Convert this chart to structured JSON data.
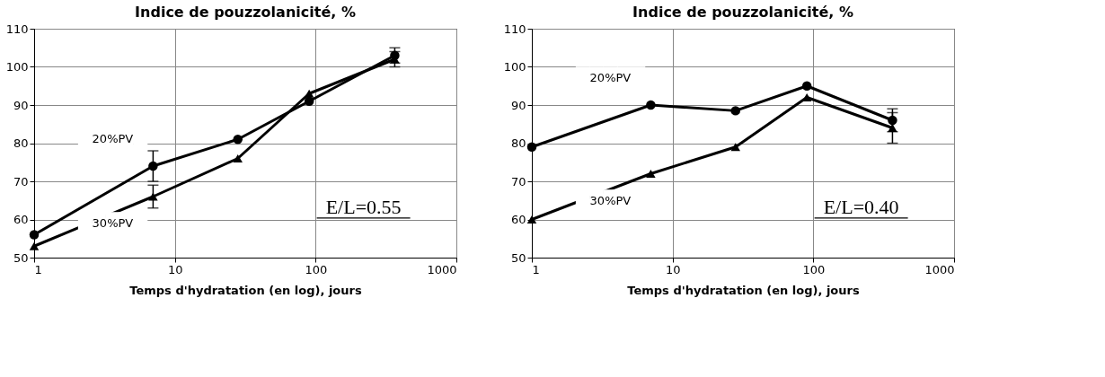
{
  "chart_data": [
    {
      "type": "line",
      "title": "Indice de pouzzolanicité, %",
      "xlabel": "Temps d'hydratation (en log), jours",
      "log": "x",
      "grid": true,
      "xlim": [
        1,
        1000
      ],
      "xticks": [
        1,
        10,
        100,
        1000
      ],
      "ylim": [
        50,
        110
      ],
      "yticks": [
        50,
        60,
        70,
        80,
        90,
        100,
        110
      ],
      "annotations": [
        "E/L=0.55"
      ],
      "line_style": "solid",
      "series": [
        {
          "name": "20%PV",
          "color": "#000000",
          "marker": "circle",
          "x": [
            1,
            7,
            28,
            90,
            365
          ],
          "values": [
            56,
            74,
            81,
            91,
            103
          ],
          "errors": [
            null,
            4,
            null,
            null,
            2
          ]
        },
        {
          "name": "30%PV",
          "color": "#000000",
          "marker": "triangle",
          "x": [
            1,
            7,
            28,
            90,
            365
          ],
          "values": [
            53,
            66,
            76,
            93,
            102
          ],
          "errors": [
            null,
            3,
            null,
            null,
            2
          ]
        }
      ]
    },
    {
      "type": "line",
      "title": "Indice de pouzzolanicité, %",
      "xlabel": "Temps d'hydratation (en log), jours",
      "log": "x",
      "grid": true,
      "xlim": [
        1,
        1000
      ],
      "xticks": [
        1,
        10,
        100,
        1000
      ],
      "ylim": [
        50,
        110
      ],
      "yticks": [
        50,
        60,
        70,
        80,
        90,
        100,
        110
      ],
      "annotations": [
        "E/L=0.40"
      ],
      "line_style": "solid",
      "series": [
        {
          "name": "20%PV",
          "color": "#000000",
          "marker": "circle",
          "x": [
            1,
            7,
            28,
            90,
            365
          ],
          "values": [
            79,
            90,
            88.5,
            95,
            86
          ],
          "errors": [
            null,
            null,
            null,
            null,
            3
          ]
        },
        {
          "name": "30%PV",
          "color": "#000000",
          "marker": "triangle",
          "x": [
            1,
            7,
            28,
            90,
            365
          ],
          "values": [
            60,
            72,
            79,
            92,
            84
          ],
          "errors": [
            null,
            null,
            null,
            null,
            4
          ]
        }
      ]
    }
  ]
}
